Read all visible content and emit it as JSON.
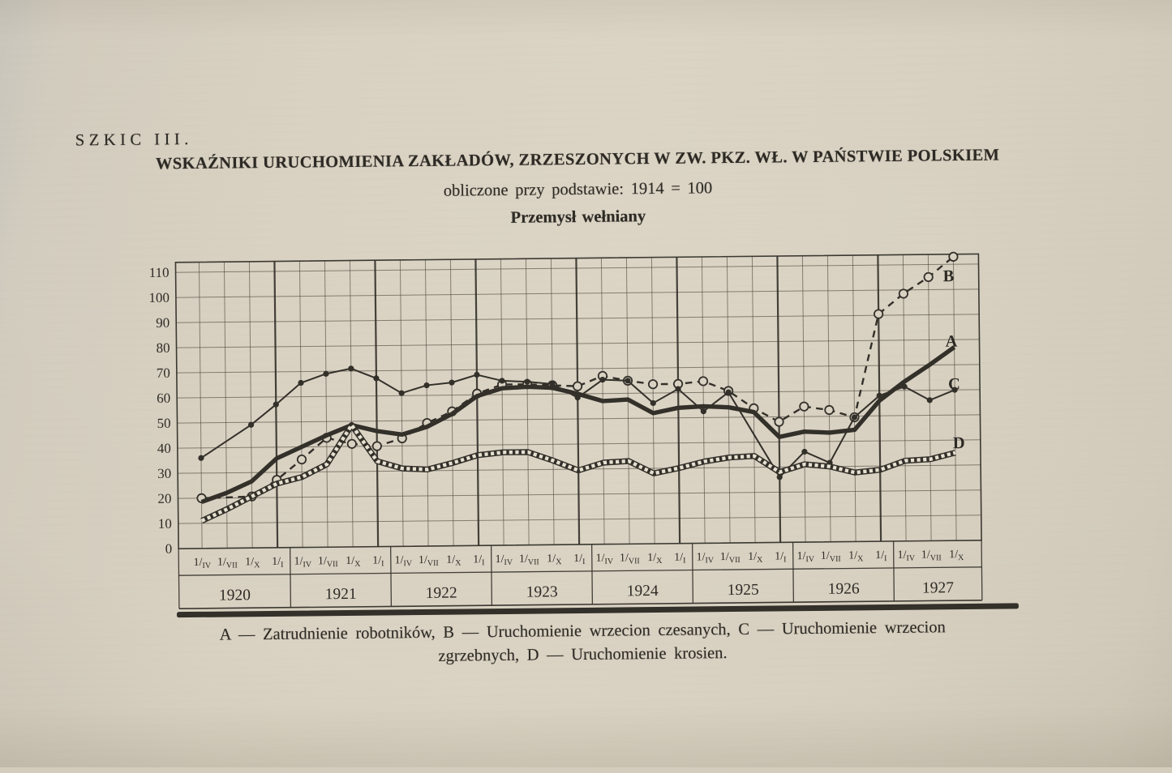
{
  "page": {
    "sketch_label": "SZKIC III.",
    "title": "WSKAŹNIKI URUCHOMIENIA ZAKŁADÓW, ZRZESZONYCH W ZW. PKZ. WŁ. W PAŃSTWIE POLSKIEM",
    "subtitle": "obliczone przy podstawie: 1914 = 100",
    "chart_heading": "Przemysł wełniany",
    "legend_line1": "A — Zatrudnienie robotników, B — Uruchomienie wrzecion czesanych, C — Uruchomienie wrzecion",
    "legend_line2": "zgrzebnych, D — Uruchomienie krosien.",
    "ink_color": "#2d2a25",
    "paper_color": "#d7d0c1"
  },
  "chart_data": {
    "type": "line",
    "title": "Przemysł wełniany",
    "ylabel": "",
    "xlabel": "",
    "ylim": [
      0,
      110
    ],
    "ytick_step": 10,
    "grid": true,
    "x_tick_labels": [
      "1/IV",
      "1/VII",
      "1/X",
      "1/I",
      "1/IV",
      "1/VII",
      "1/X",
      "1/I",
      "1/IV",
      "1/VII",
      "1/X",
      "1/I",
      "1/IV",
      "1/VII",
      "1/X",
      "1/I",
      "1/IV",
      "1/VII",
      "1/X",
      "1/I",
      "1/IV",
      "1/VII",
      "1/X",
      "1/I",
      "1/IV",
      "1/VII",
      "1/X",
      "1/I",
      "1/IV",
      "1/VII",
      "1/X"
    ],
    "years": [
      "1920",
      "1921",
      "1922",
      "1923",
      "1924",
      "1925",
      "1926",
      "1927"
    ],
    "ticks_per_year": [
      4,
      4,
      4,
      4,
      4,
      4,
      4,
      3
    ],
    "series": [
      {
        "name": "B",
        "label": "B",
        "style": "dashed-circles",
        "legend": "Uruchomienie wrzecion czesanych",
        "values": [
          20,
          20.2,
          20.5,
          27,
          35,
          43.5,
          41,
          40,
          43,
          49,
          53.5,
          60.5,
          64,
          64,
          63.5,
          63,
          67,
          65,
          63.5,
          63.5,
          64.5,
          60.5,
          53.5,
          48,
          54,
          52.5,
          49.5,
          90.5,
          98.5,
          105,
          113
        ],
        "skip_markers": [
          1
        ]
      },
      {
        "name": "A",
        "label": "A",
        "style": "thick-solid",
        "legend": "Zatrudnienie robotników",
        "values": [
          18.5,
          22,
          26.5,
          35.5,
          40,
          44.5,
          48.5,
          46,
          44.5,
          47.5,
          52.5,
          59.5,
          62.5,
          63,
          62.5,
          60,
          57,
          57.5,
          52,
          54,
          54.5,
          54,
          52,
          42,
          44,
          43.5,
          44.5,
          56,
          63.5,
          70,
          77
        ],
        "skip_markers": []
      },
      {
        "name": "C",
        "label": "C",
        "style": "thin-solid-dots",
        "legend": "Uruchomienie wrzecion zgrzebnych",
        "values": [
          36,
          42.5,
          49,
          57,
          65.5,
          69,
          71,
          67,
          61,
          64,
          65,
          68,
          65.5,
          65,
          64,
          58.5,
          65.5,
          65,
          56,
          61.5,
          52.5,
          60,
          43,
          26,
          36,
          31.5,
          49.5,
          58,
          61.5,
          56,
          60
        ],
        "skip_markers": [
          1,
          22
        ]
      },
      {
        "name": "D",
        "label": "D",
        "style": "hatched-band",
        "legend": "Uruchomienie krosien",
        "values": [
          11,
          15.5,
          20.5,
          25.5,
          28,
          33,
          48.5,
          34,
          31,
          30.5,
          33,
          36,
          37,
          37,
          33.5,
          29.5,
          32.5,
          33,
          28,
          30,
          32.5,
          34,
          34.5,
          28,
          31,
          30,
          27.5,
          28.5,
          32,
          32.5,
          35
        ],
        "skip_markers": []
      }
    ]
  }
}
